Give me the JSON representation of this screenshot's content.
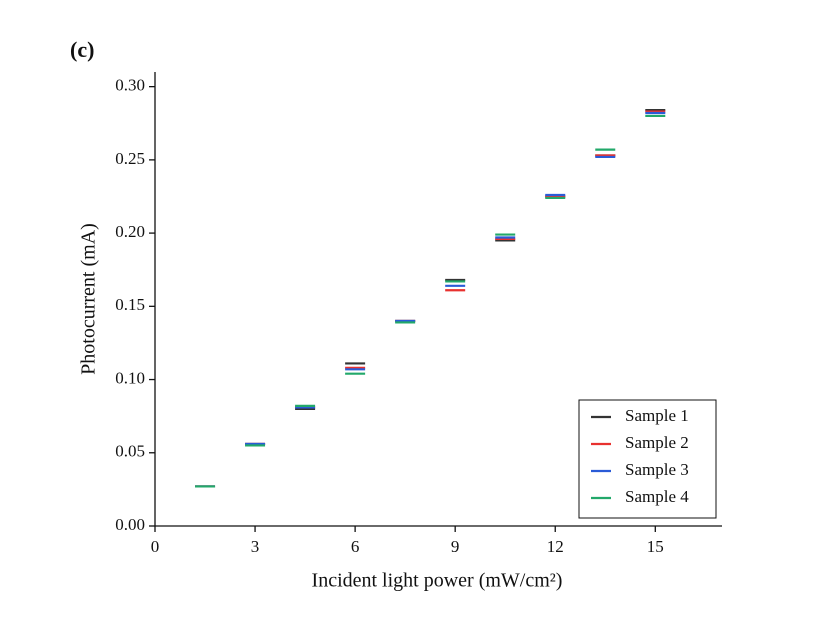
{
  "chart_data": {
    "type": "scatter",
    "annotation": "(c)",
    "x_label": "Incident light power (mW/cm²)",
    "y_label": "Photocurrent (mA)",
    "x": [
      1.5,
      3,
      4.5,
      6,
      7.5,
      9,
      10.5,
      12,
      13.5,
      15
    ],
    "series": [
      {
        "name": "Sample 1",
        "color": "#333333",
        "values": [
          0.027,
          0.056,
          0.08,
          0.111,
          0.14,
          0.168,
          0.195,
          0.225,
          0.253,
          0.284
        ]
      },
      {
        "name": "Sample 2",
        "color": "#e8312f",
        "values": [
          0.027,
          0.056,
          0.081,
          0.108,
          0.14,
          0.161,
          0.196,
          0.225,
          0.253,
          0.283
        ]
      },
      {
        "name": "Sample 3",
        "color": "#2a5bd7",
        "values": [
          0.027,
          0.056,
          0.081,
          0.107,
          0.14,
          0.164,
          0.197,
          0.226,
          0.252,
          0.282
        ]
      },
      {
        "name": "Sample 4",
        "color": "#22a86a",
        "values": [
          0.027,
          0.055,
          0.082,
          0.104,
          0.139,
          0.167,
          0.199,
          0.224,
          0.257,
          0.28
        ]
      }
    ],
    "xlim": [
      0,
      17
    ],
    "xticks": [
      0,
      3,
      6,
      9,
      12,
      15
    ],
    "ylim": [
      0,
      0.31
    ],
    "yticks": [
      {
        "value": 0,
        "label": "0.00"
      },
      {
        "value": 0.05,
        "label": "0.05"
      },
      {
        "value": 0.1,
        "label": "0.10"
      },
      {
        "value": 0.15,
        "label": "0.15"
      },
      {
        "value": 0.2,
        "label": "0.20"
      },
      {
        "value": 0.25,
        "label": "0.25"
      },
      {
        "value": 0.3,
        "label": "0.30"
      }
    ],
    "legend": "lower right"
  }
}
